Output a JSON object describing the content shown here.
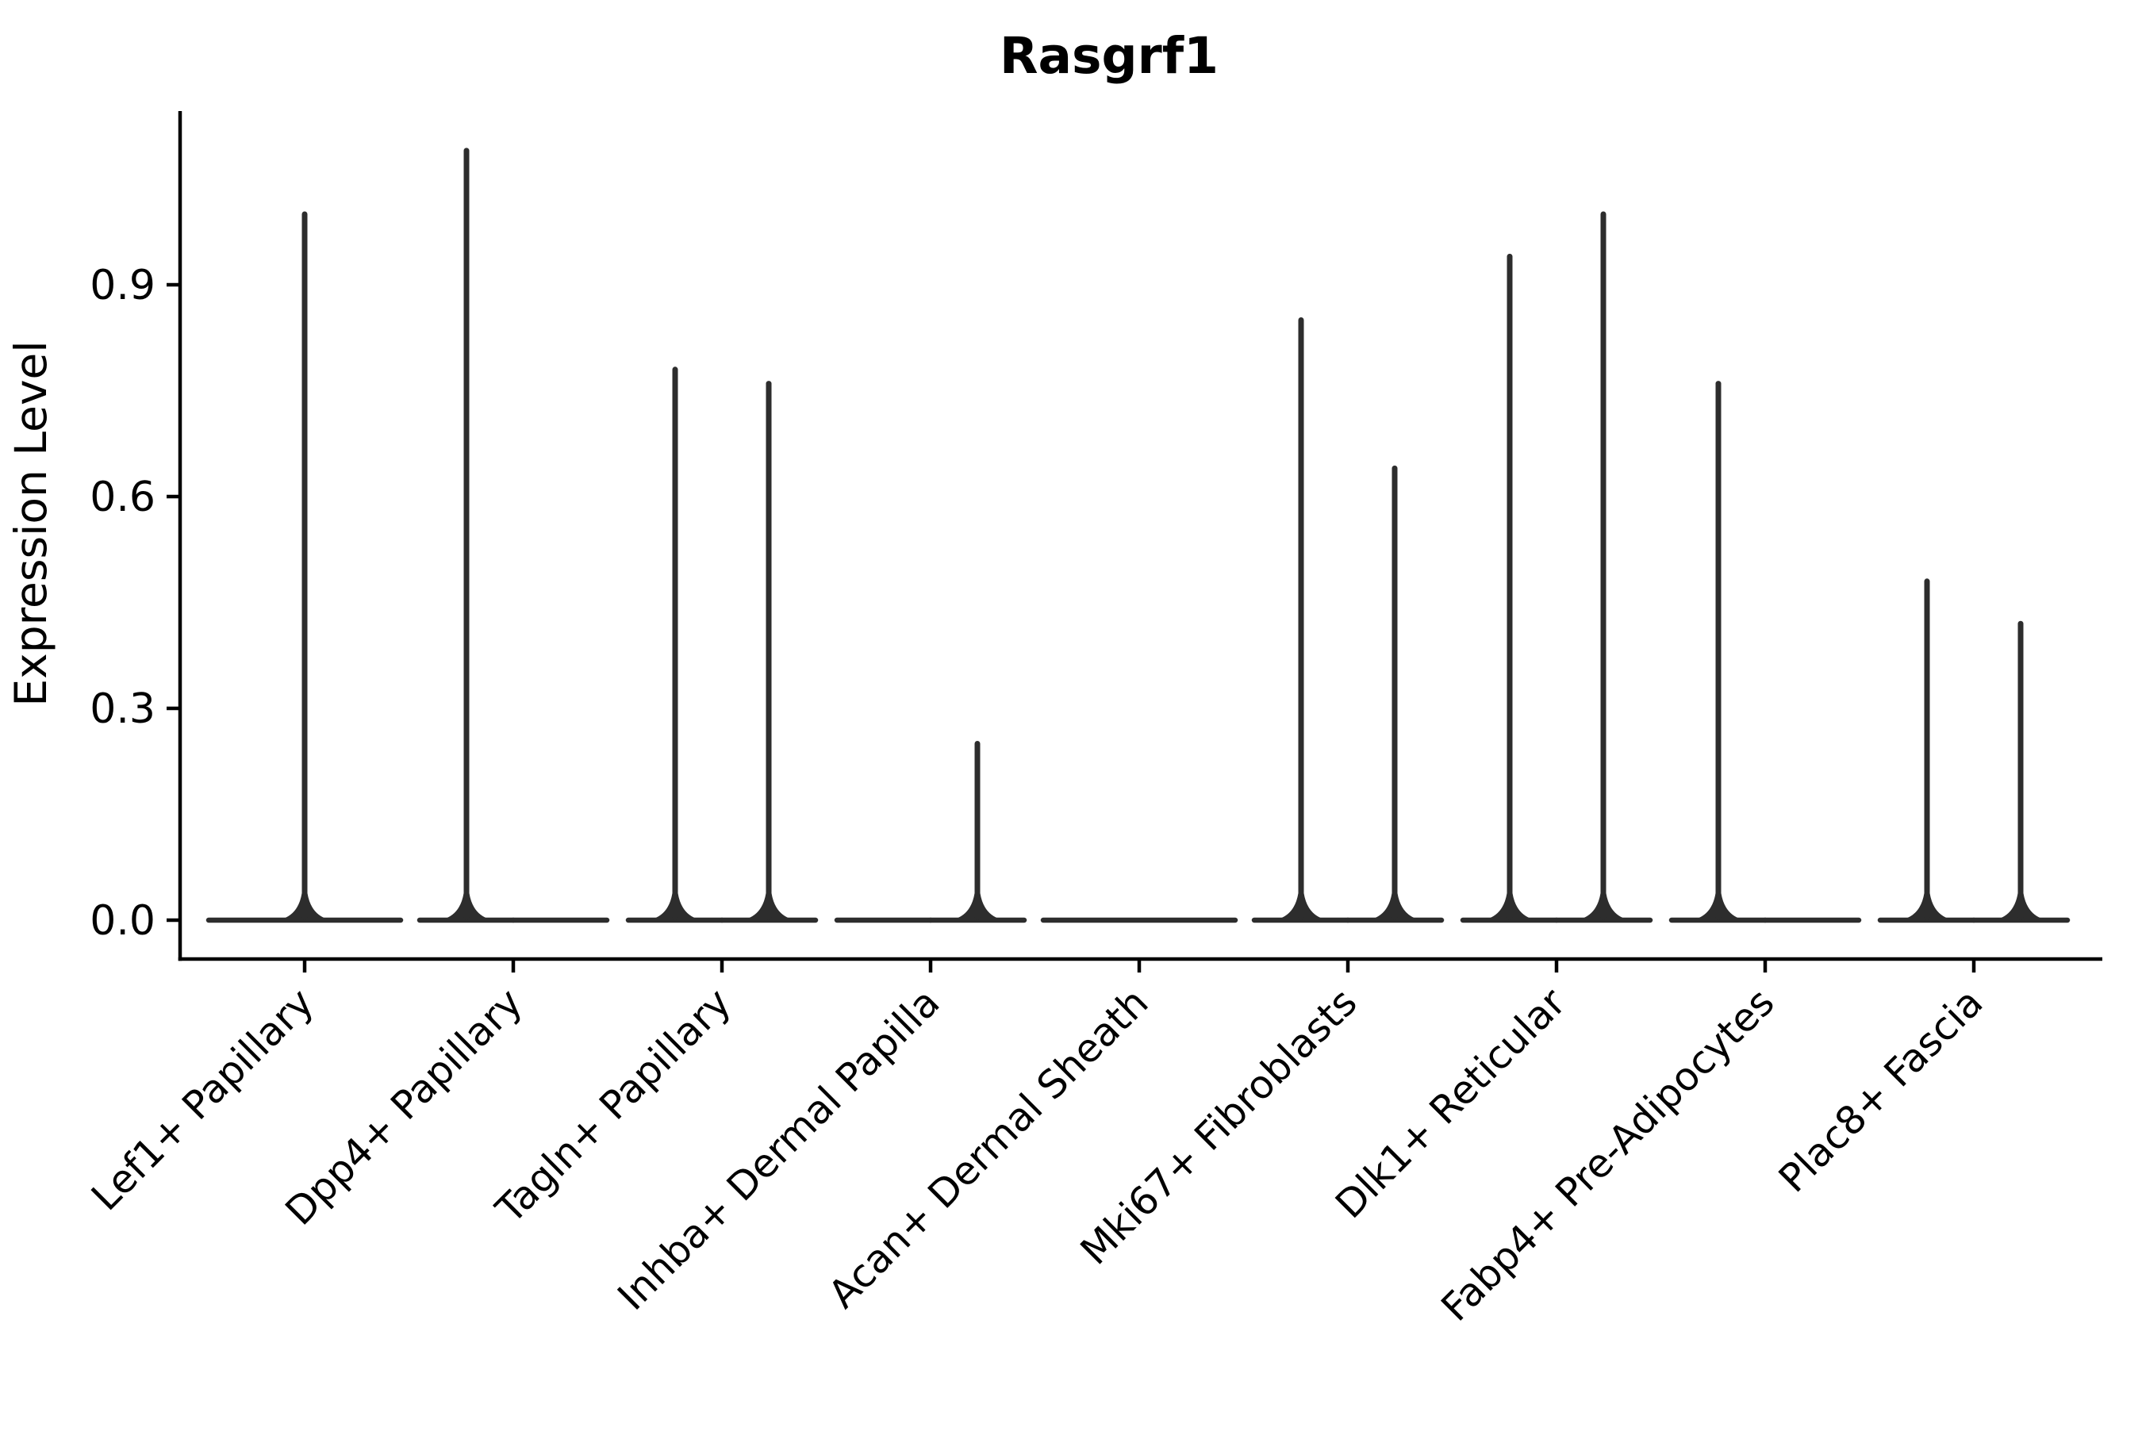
{
  "chart_data": {
    "type": "violin",
    "title": "Rasgrf1",
    "ylabel": "Expression Level",
    "xlabel": "",
    "ylim": [
      -0.06,
      1.15
    ],
    "grid": false,
    "legend": "none",
    "ytick_values": [
      0.0,
      0.3,
      0.6,
      0.9
    ],
    "ytick_labels": [
      "0.0",
      "0.3",
      "0.6",
      "0.9"
    ],
    "description": "Violin plot of Rasgrf1 expression; most cells at 0 giving flat violin bodies with thin spikes up to the max expressing cell. Some categories contain two grouped violins.",
    "categories": [
      {
        "label": "Lef1+ Papillary",
        "violins": [
          {
            "group": "full",
            "peak": 1.0
          }
        ]
      },
      {
        "label": "Dpp4+ Papillary",
        "violins": [
          {
            "group": "left",
            "peak": 1.09
          },
          {
            "group": "right",
            "peak": 0.0
          }
        ]
      },
      {
        "label": "Tagln+ Papillary",
        "violins": [
          {
            "group": "left",
            "peak": 0.78
          },
          {
            "group": "right",
            "peak": 0.76
          }
        ]
      },
      {
        "label": "Inhba+ Dermal Papilla",
        "violins": [
          {
            "group": "left",
            "peak": 0.0
          },
          {
            "group": "right",
            "peak": 0.25
          }
        ]
      },
      {
        "label": "Acan+ Dermal Sheath",
        "violins": [
          {
            "group": "full",
            "peak": 0.0
          }
        ]
      },
      {
        "label": "Mki67+ Fibroblasts",
        "violins": [
          {
            "group": "left",
            "peak": 0.85
          },
          {
            "group": "right",
            "peak": 0.64
          }
        ]
      },
      {
        "label": "Dlk1+ Reticular",
        "violins": [
          {
            "group": "left",
            "peak": 0.94
          },
          {
            "group": "right",
            "peak": 1.0
          }
        ]
      },
      {
        "label": "Fabp4+ Pre-Adipocytes",
        "violins": [
          {
            "group": "left",
            "peak": 0.76
          },
          {
            "group": "right",
            "peak": 0.0
          }
        ]
      },
      {
        "label": "Plac8+ Fascia",
        "violins": [
          {
            "group": "left",
            "peak": 0.48
          },
          {
            "group": "right",
            "peak": 0.42
          }
        ]
      }
    ],
    "colors": {
      "violin_stroke": "#2d2d2d",
      "axis": "#000000",
      "text": "#000000",
      "background": "#ffffff"
    }
  }
}
